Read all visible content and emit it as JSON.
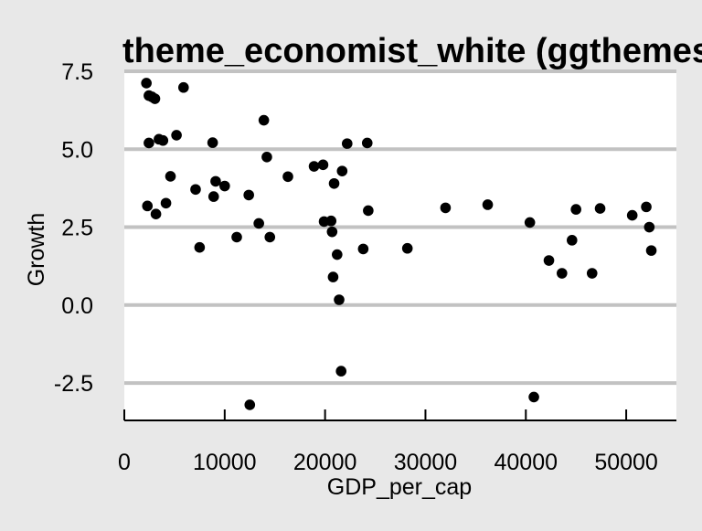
{
  "chart_data": {
    "type": "scatter",
    "title": "theme_economist_white (ggthemes)",
    "xlabel": "GDP_per_cap",
    "ylabel": "Growth",
    "xlim": [
      0,
      55000
    ],
    "ylim": [
      -3.7,
      7.5
    ],
    "x_ticks": [
      0,
      10000,
      20000,
      30000,
      40000,
      50000
    ],
    "x_tick_labels": [
      "0",
      "10000",
      "20000",
      "30000",
      "40000",
      "50000"
    ],
    "y_ticks": [
      -2.5,
      0.0,
      2.5,
      5.0,
      7.5
    ],
    "y_tick_labels": [
      "-2.5",
      "0.0",
      "2.5",
      "5.0",
      "7.5"
    ],
    "grid": "horizontal major",
    "legend": "none",
    "colors": {
      "background": "#e8e8e8",
      "panel": "#ffffff",
      "gridline": "#c2c2c2",
      "point": "#000000",
      "text": "#000000"
    },
    "points": [
      {
        "x": 2200,
        "y": 7.12
      },
      {
        "x": 2450,
        "y": 6.72
      },
      {
        "x": 2750,
        "y": 6.68
      },
      {
        "x": 3050,
        "y": 6.62
      },
      {
        "x": 5900,
        "y": 6.98
      },
      {
        "x": 2450,
        "y": 5.2
      },
      {
        "x": 3450,
        "y": 5.32
      },
      {
        "x": 3850,
        "y": 5.28
      },
      {
        "x": 5200,
        "y": 5.45
      },
      {
        "x": 8800,
        "y": 5.21
      },
      {
        "x": 13900,
        "y": 5.93
      },
      {
        "x": 14200,
        "y": 4.75
      },
      {
        "x": 4600,
        "y": 4.13
      },
      {
        "x": 9100,
        "y": 3.97
      },
      {
        "x": 10000,
        "y": 3.82
      },
      {
        "x": 7100,
        "y": 3.71
      },
      {
        "x": 8900,
        "y": 3.48
      },
      {
        "x": 12400,
        "y": 3.53
      },
      {
        "x": 16300,
        "y": 4.12
      },
      {
        "x": 18900,
        "y": 4.45
      },
      {
        "x": 19800,
        "y": 4.5
      },
      {
        "x": 21700,
        "y": 4.3
      },
      {
        "x": 22200,
        "y": 5.18
      },
      {
        "x": 24200,
        "y": 5.2
      },
      {
        "x": 20900,
        "y": 3.9
      },
      {
        "x": 2300,
        "y": 3.18
      },
      {
        "x": 3150,
        "y": 2.92
      },
      {
        "x": 4150,
        "y": 3.27
      },
      {
        "x": 13400,
        "y": 2.62
      },
      {
        "x": 14500,
        "y": 2.18
      },
      {
        "x": 11200,
        "y": 2.18
      },
      {
        "x": 7500,
        "y": 1.85
      },
      {
        "x": 19900,
        "y": 2.68
      },
      {
        "x": 20600,
        "y": 2.7
      },
      {
        "x": 20700,
        "y": 2.35
      },
      {
        "x": 24300,
        "y": 3.03
      },
      {
        "x": 23800,
        "y": 1.8
      },
      {
        "x": 21200,
        "y": 1.62
      },
      {
        "x": 20800,
        "y": 0.9
      },
      {
        "x": 21400,
        "y": 0.17
      },
      {
        "x": 21600,
        "y": -2.12
      },
      {
        "x": 12500,
        "y": -3.2
      },
      {
        "x": 28200,
        "y": 1.82
      },
      {
        "x": 32000,
        "y": 3.12
      },
      {
        "x": 36200,
        "y": 3.22
      },
      {
        "x": 40400,
        "y": 2.65
      },
      {
        "x": 40800,
        "y": -2.95
      },
      {
        "x": 42300,
        "y": 1.43
      },
      {
        "x": 43600,
        "y": 1.02
      },
      {
        "x": 44600,
        "y": 2.08
      },
      {
        "x": 45000,
        "y": 3.07
      },
      {
        "x": 46600,
        "y": 1.02
      },
      {
        "x": 47400,
        "y": 3.1
      },
      {
        "x": 50600,
        "y": 2.88
      },
      {
        "x": 52000,
        "y": 3.15
      },
      {
        "x": 52300,
        "y": 2.5
      },
      {
        "x": 52500,
        "y": 1.75
      }
    ]
  }
}
